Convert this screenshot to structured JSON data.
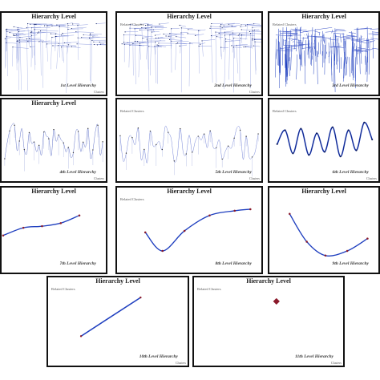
{
  "panels": [
    {
      "id": "p1",
      "title": "Hierarchy Level",
      "related": "",
      "label": "1st Level Hierarchy",
      "clusters": "Clusters",
      "style": "dense-tree"
    },
    {
      "id": "p2",
      "title": "Hierarchy Level",
      "related": "Related Clusters",
      "label": "2nd Level Hierarchy",
      "clusters": "Clusters",
      "style": "dense-tree2"
    },
    {
      "id": "p3",
      "title": "Hierarchy Level",
      "related": "Related Clusters",
      "label": "3rd Level Hierarchy",
      "clusters": "",
      "style": "dense-blue"
    },
    {
      "id": "p4",
      "title": "Hierarchy Level",
      "related": "",
      "label": "4th Level Hierarchy",
      "clusters": "Clusters",
      "style": "spiky"
    },
    {
      "id": "p5",
      "title": "",
      "related": "Related Clusters",
      "label": "5th Level Hierarchy",
      "clusters": "Clusters",
      "style": "spiky2"
    },
    {
      "id": "p6",
      "title": "",
      "related": "Related Clusters",
      "label": "6th Level Hierarchy",
      "clusters": "Clusters",
      "style": "wave"
    },
    {
      "id": "p7",
      "title": "Hierarchy Level",
      "related": "",
      "label": "7th Level Hierarchy",
      "clusters": "",
      "style": "smooth-up"
    },
    {
      "id": "p8",
      "title": "Hierarchy Level",
      "related": "Related Clusters",
      "label": "8th Level Hierarchy",
      "clusters": "",
      "style": "dip-up"
    },
    {
      "id": "p9",
      "title": "Hierarchy Level",
      "related": "",
      "label": "9th Level Hierarchy",
      "clusters": "",
      "style": "dip"
    },
    {
      "id": "p10",
      "title": "Hierarchy Level",
      "related": "Related Clusters",
      "label": "10th Level Hierarchy",
      "clusters": "Clusters",
      "style": "line"
    },
    {
      "id": "p11",
      "title": "Hierarchy Level",
      "related": "Related Clusters",
      "label": "11th Level Hierarchy",
      "clusters": "Clusters",
      "style": "point"
    }
  ],
  "colors": {
    "line": "#1f3fbf",
    "dark": "#0b1a5a",
    "node": "#8b1a2b",
    "border": "#111111"
  }
}
